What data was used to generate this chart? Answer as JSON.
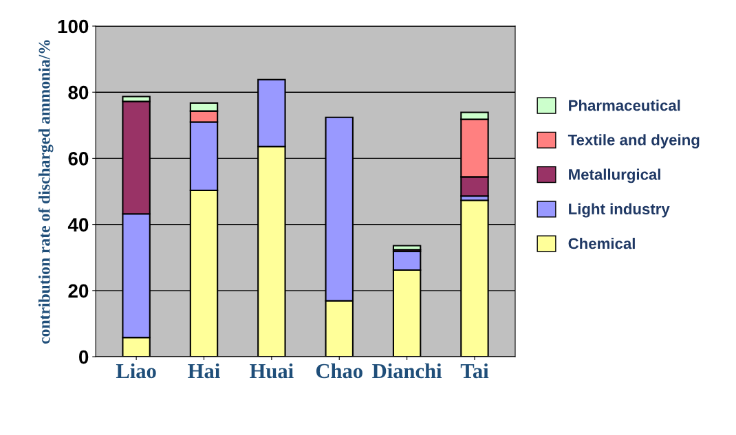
{
  "chart_data": {
    "type": "bar",
    "stacked": true,
    "ylabel": "contribution rate of discharged ammonia/%",
    "categories": [
      "Liao",
      "Hai",
      "Huai",
      "Chao",
      "Dianchi",
      "Tai"
    ],
    "series": [
      {
        "name": "Chemical",
        "color": "#ffff99",
        "values": [
          5.8,
          50.3,
          63.6,
          16.9,
          26.2,
          47.3
        ]
      },
      {
        "name": "Light industry",
        "color": "#9999ff",
        "values": [
          37.4,
          20.7,
          20.2,
          55.5,
          5.7,
          1.3
        ]
      },
      {
        "name": "Metallurgical",
        "color": "#993366",
        "values": [
          34.0,
          null,
          null,
          null,
          0.5,
          5.8
        ]
      },
      {
        "name": "Textile and dyeing",
        "color": "#ff8080",
        "values": [
          null,
          3.3,
          null,
          null,
          null,
          17.4
        ]
      },
      {
        "name": "Pharmaceutical",
        "color": "#ccffcc",
        "values": [
          1.5,
          2.4,
          null,
          null,
          1.2,
          2.1
        ]
      }
    ],
    "ylim": [
      0,
      100
    ],
    "yticks": [
      0,
      20,
      40,
      60,
      80,
      100
    ],
    "grid": "y",
    "legend": "right"
  }
}
